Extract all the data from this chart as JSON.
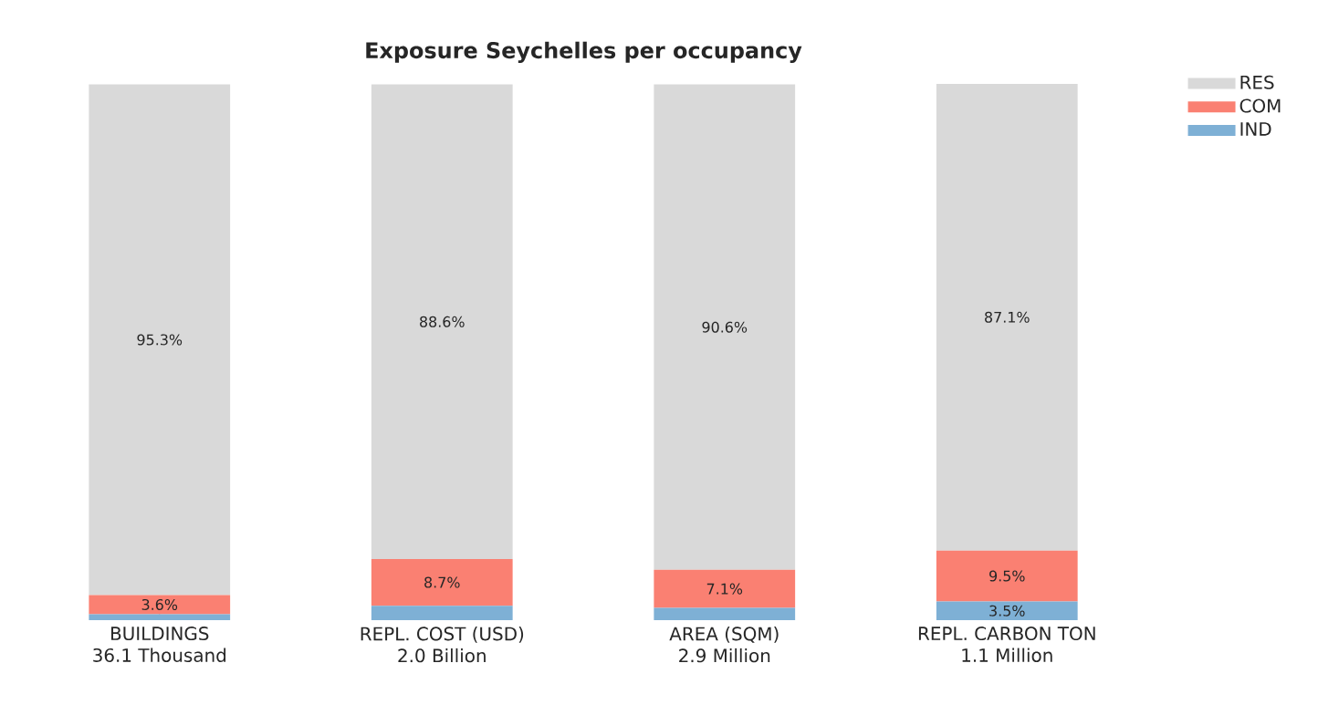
{
  "chart_data": {
    "type": "bar",
    "title": "Exposure Seychelles per occupancy",
    "stacked": true,
    "legend": "top right",
    "categories": [
      "BUILDINGS\n36.1 Thousand",
      "REPL. COST (USD)\n2.0 Billion",
      "AREA (SQM)\n2.9 Million",
      "REPL. CARBON TON\n1.1 Million"
    ],
    "series": [
      {
        "name": "IND",
        "color": "#7eb0d5",
        "values": [
          1.1,
          2.7,
          2.3,
          3.5
        ],
        "value_labels": [
          null,
          null,
          null,
          "3.5%"
        ]
      },
      {
        "name": "COM",
        "color": "#fa8072",
        "values": [
          3.6,
          8.7,
          7.1,
          9.5
        ],
        "value_labels": [
          "3.6%",
          "8.7%",
          "7.1%",
          "9.5%"
        ]
      },
      {
        "name": "RES",
        "color": "#d9d9d9",
        "values": [
          95.3,
          88.6,
          90.6,
          87.1
        ],
        "value_labels": [
          "95.3%",
          "88.6%",
          "90.6%",
          "87.1%"
        ]
      }
    ]
  }
}
